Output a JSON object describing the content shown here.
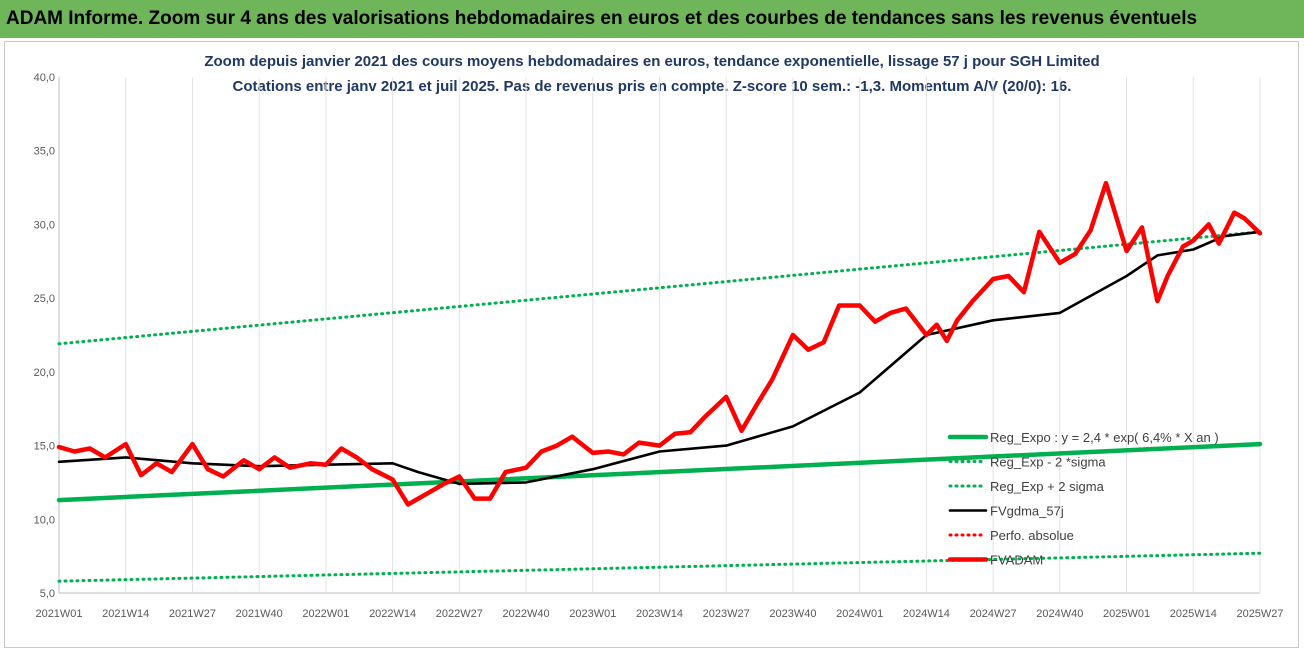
{
  "header": {
    "banner": "ADAM Informe. Zoom sur 4 ans des valorisations hebdomadaires en euros et des courbes de tendances sans les revenus éventuels"
  },
  "colors": {
    "banner_bg": "#6fb55a",
    "reg": "#00b050",
    "red": "#ff0000",
    "black": "#000000",
    "title": "#1f3864"
  },
  "chart_data": {
    "type": "line",
    "title": "Zoom depuis janvier 2021 des cours moyens hebdomadaires en euros, tendance exponentielle, lissage 57 j pour SGH Limited",
    "subtitle": "Cotations entre janv 2021 et juil 2025. Pas de revenus pris en compte. Z-score 10 sem.: -1,3. Momentum A/V (20/0): 16.",
    "xlabel": "",
    "ylabel": "",
    "ylim": [
      5,
      40
    ],
    "y_ticks": [
      "5,0",
      "10,0",
      "15,0",
      "20,0",
      "25,0",
      "30,0",
      "35,0",
      "40,0"
    ],
    "x_ticks": [
      "2021W01",
      "2021W14",
      "2021W27",
      "2021W40",
      "2022W01",
      "2022W14",
      "2022W27",
      "2022W40",
      "2023W01",
      "2023W14",
      "2023W27",
      "2023W40",
      "2024W01",
      "2024W14",
      "2024W27",
      "2024W40",
      "2025W01",
      "2025W14",
      "2025W27"
    ],
    "grid": "vertical",
    "legend_position": "bottom-right",
    "series": [
      {
        "name": "Reg_Expo : y = 2,4 * exp( 6,4% *  X  an )",
        "style": "solid-thick",
        "color": "#00b050",
        "x": [
          0,
          234
        ],
        "values": [
          11.3,
          15.1
        ]
      },
      {
        "name": "Reg_Exp - 2 *sigma",
        "style": "dotted",
        "color": "#00b050",
        "x": [
          0,
          234
        ],
        "values": [
          5.8,
          7.7
        ]
      },
      {
        "name": "Reg_Exp + 2 sigma",
        "style": "dotted",
        "color": "#00b050",
        "x": [
          0,
          234
        ],
        "values": [
          21.9,
          29.5
        ]
      },
      {
        "name": "FVgdma_57j",
        "style": "solid",
        "color": "#000000",
        "x": [
          0,
          13,
          26,
          39,
          52,
          65,
          70,
          78,
          91,
          104,
          117,
          130,
          143,
          156,
          169,
          182,
          195,
          208,
          214,
          221,
          227,
          234
        ],
        "values": [
          13.9,
          14.2,
          13.8,
          13.6,
          13.7,
          13.8,
          13.2,
          12.4,
          12.5,
          13.4,
          14.6,
          15.0,
          16.3,
          18.6,
          22.5,
          23.5,
          24.0,
          26.5,
          27.9,
          28.3,
          29.2,
          29.5
        ]
      },
      {
        "name": "Perfo. absolue",
        "style": "dotted",
        "color": "#ff0000",
        "x": [],
        "values": []
      },
      {
        "name": "FVADAM",
        "style": "solid-thick",
        "color": "#ff0000",
        "x": [
          0,
          3,
          6,
          9,
          13,
          16,
          19,
          22,
          26,
          29,
          32,
          36,
          39,
          42,
          45,
          49,
          52,
          55,
          58,
          61,
          65,
          68,
          71,
          75,
          78,
          81,
          84,
          87,
          91,
          94,
          97,
          100,
          104,
          107,
          110,
          113,
          117,
          120,
          123,
          126,
          130,
          133,
          136,
          139,
          143,
          146,
          149,
          152,
          156,
          159,
          162,
          165,
          169,
          171,
          173,
          175,
          178,
          182,
          185,
          188,
          191,
          195,
          198,
          201,
          204,
          208,
          211,
          214,
          216,
          219,
          221,
          224,
          226,
          229,
          231,
          234
        ],
        "values": [
          14.9,
          14.6,
          14.8,
          14.2,
          15.1,
          13.0,
          13.8,
          13.2,
          15.1,
          13.4,
          12.9,
          14.0,
          13.4,
          14.2,
          13.5,
          13.8,
          13.7,
          14.8,
          14.2,
          13.4,
          12.7,
          11.0,
          11.6,
          12.4,
          12.9,
          11.4,
          11.4,
          13.2,
          13.5,
          14.6,
          15.0,
          15.6,
          14.5,
          14.6,
          14.4,
          15.2,
          15.0,
          15.8,
          15.9,
          17.0,
          18.3,
          16.0,
          17.8,
          19.5,
          22.5,
          21.5,
          22.0,
          24.5,
          24.5,
          23.4,
          24.0,
          24.3,
          22.5,
          23.2,
          22.1,
          23.5,
          24.8,
          26.3,
          26.5,
          25.4,
          29.5,
          27.4,
          28.0,
          29.6,
          32.8,
          28.2,
          29.8,
          24.8,
          26.5,
          28.5,
          28.9,
          30.0,
          28.7,
          30.8,
          30.4,
          29.4
        ]
      }
    ]
  }
}
